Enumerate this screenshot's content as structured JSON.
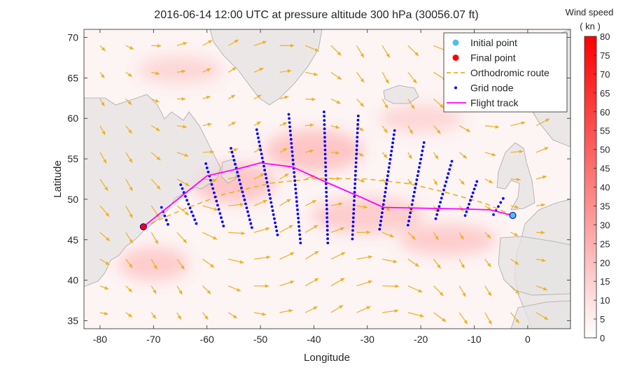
{
  "chart_data": {
    "type": "map",
    "title": "2016-06-14 12:00 UTC at pressure altitude  300 hPa (30056.07 ft)",
    "xlabel": "Longitude",
    "ylabel": "Latitude",
    "xlim": [
      -83,
      8
    ],
    "ylim": [
      34,
      71
    ],
    "xticks": [
      -80,
      -70,
      -60,
      -50,
      -40,
      -30,
      -20,
      -10,
      0
    ],
    "yticks": [
      35,
      40,
      45,
      50,
      55,
      60,
      65,
      70
    ],
    "colorbar": {
      "title_line1": "Wind speed",
      "title_line2": "( kn )",
      "min": 0,
      "max": 80,
      "ticks": [
        0,
        5,
        10,
        15,
        20,
        25,
        30,
        35,
        40,
        45,
        50,
        55,
        60,
        65,
        70,
        75,
        80
      ],
      "colors": [
        "#ffffff",
        "#ff0000"
      ]
    },
    "legend": {
      "position": "top-right",
      "entries": [
        {
          "label": "Initial point",
          "marker": "circle",
          "color": "#4dbeee"
        },
        {
          "label": "Final point",
          "marker": "circle",
          "color": "#ff0000"
        },
        {
          "label": "Orthodromic route",
          "marker": "dashed-line",
          "color": "#edb120"
        },
        {
          "label": "Grid node",
          "marker": "dot",
          "color": "#0000ff"
        },
        {
          "label": "Flight track",
          "marker": "line",
          "color": "#ff00ff"
        }
      ]
    },
    "initial_point": {
      "lon": -2.8,
      "lat": 48.0
    },
    "final_point": {
      "lon": -71.9,
      "lat": 46.6
    },
    "orthodromic_route": [
      {
        "lon": -71.9,
        "lat": 46.6
      },
      {
        "lon": -65,
        "lat": 48.6
      },
      {
        "lon": -57,
        "lat": 50.6
      },
      {
        "lon": -48,
        "lat": 52.0
      },
      {
        "lon": -39,
        "lat": 52.6
      },
      {
        "lon": -30,
        "lat": 52.5
      },
      {
        "lon": -22,
        "lat": 51.9
      },
      {
        "lon": -15,
        "lat": 50.8
      },
      {
        "lon": -8,
        "lat": 49.5
      },
      {
        "lon": -2.8,
        "lat": 48.0
      }
    ],
    "flight_track": [
      {
        "lon": -71.9,
        "lat": 46.6
      },
      {
        "lon": -60,
        "lat": 52.9
      },
      {
        "lon": -54,
        "lat": 53.8
      },
      {
        "lon": -50,
        "lat": 54.5
      },
      {
        "lon": -44,
        "lat": 54.0
      },
      {
        "lon": -38,
        "lat": 52.2
      },
      {
        "lon": -31,
        "lat": 50.2
      },
      {
        "lon": -27,
        "lat": 49.0
      },
      {
        "lon": -20,
        "lat": 48.9
      },
      {
        "lon": -12,
        "lat": 48.8
      },
      {
        "lon": -7,
        "lat": 48.7
      },
      {
        "lon": -2.8,
        "lat": 48.0
      }
    ],
    "grid_lines": [
      {
        "top": {
          "lon": -68.5,
          "lat": 49.0
        },
        "bottom": {
          "lon": -67.3,
          "lat": 46.9
        }
      },
      {
        "top": {
          "lon": -64.9,
          "lat": 51.8
        },
        "bottom": {
          "lon": -62.0,
          "lat": 47.0
        }
      },
      {
        "top": {
          "lon": -60.2,
          "lat": 54.4
        },
        "bottom": {
          "lon": -56.9,
          "lat": 46.7
        }
      },
      {
        "top": {
          "lon": -55.5,
          "lat": 56.3
        },
        "bottom": {
          "lon": -51.6,
          "lat": 46.5
        }
      },
      {
        "top": {
          "lon": -50.7,
          "lat": 58.6
        },
        "bottom": {
          "lon": -46.8,
          "lat": 45.6
        }
      },
      {
        "top": {
          "lon": -44.7,
          "lat": 60.5
        },
        "bottom": {
          "lon": -42.5,
          "lat": 44.6
        }
      },
      {
        "top": {
          "lon": -38.1,
          "lat": 60.8
        },
        "bottom": {
          "lon": -37.4,
          "lat": 44.6
        }
      },
      {
        "top": {
          "lon": -31.7,
          "lat": 60.3
        },
        "bottom": {
          "lon": -32.8,
          "lat": 45.1
        }
      },
      {
        "top": {
          "lon": -24.9,
          "lat": 58.5
        },
        "bottom": {
          "lon": -27.7,
          "lat": 46.3
        }
      },
      {
        "top": {
          "lon": -19.4,
          "lat": 57.0
        },
        "bottom": {
          "lon": -22.4,
          "lat": 46.8
        }
      },
      {
        "top": {
          "lon": -14.2,
          "lat": 54.7
        },
        "bottom": {
          "lon": -17.2,
          "lat": 47.6
        }
      },
      {
        "top": {
          "lon": -9.5,
          "lat": 52.2
        },
        "bottom": {
          "lon": -11.7,
          "lat": 48.0
        }
      },
      {
        "top": {
          "lon": -4.6,
          "lat": 50.1
        },
        "bottom": {
          "lon": -6.4,
          "lat": 48.1
        }
      }
    ],
    "wind_field_arrow_color": "#edb120",
    "land_color": "#e6e6e6",
    "ocean_color": "#ffffff"
  }
}
